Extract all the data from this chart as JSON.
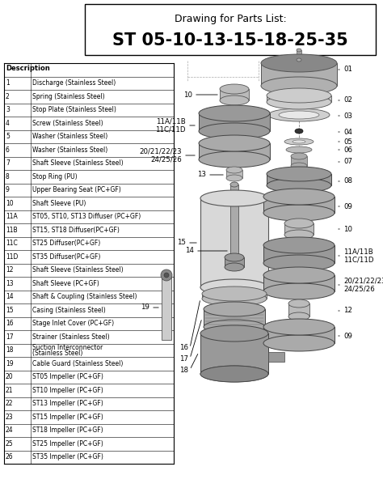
{
  "title_line1": "Drawing for Parts List:",
  "title_line2": "ST 05-10-13-15-18-25-35",
  "bg_color": "#ffffff",
  "table_rows": [
    [
      "1",
      "Discharge (Stainless Steel)"
    ],
    [
      "2",
      "Spring (Stainless Steel)"
    ],
    [
      "3",
      "Stop Plate (Stainless Steel)"
    ],
    [
      "4",
      "Screw (Stainless Steel)"
    ],
    [
      "5",
      "Washer (Stainless Steel)"
    ],
    [
      "6",
      "Washer (Stainless Steel)"
    ],
    [
      "7",
      "Shaft Sleeve (Stainless Steel)"
    ],
    [
      "8",
      "Stop Ring (PU)"
    ],
    [
      "9",
      "Upper Bearing Seat (PC+GF)"
    ],
    [
      "10",
      "Shaft Sleeve (PU)"
    ],
    [
      "11A",
      "ST05, ST10, ST13 Diffuser (PC+GF)"
    ],
    [
      "11B",
      "ST15, ST18 Diffuser(PC+GF)"
    ],
    [
      "11C",
      "ST25 Diffuser(PC+GF)"
    ],
    [
      "11D",
      "ST35 Diffuser(PC+GF)"
    ],
    [
      "12",
      "Shaft Sleeve (Stainless Steel)"
    ],
    [
      "13",
      "Shaft Sleeve (PC+GF)"
    ],
    [
      "14",
      "Shaft & Coupling (Stainless Steel)"
    ],
    [
      "15",
      "Casing (Stainless Steel)"
    ],
    [
      "16",
      "Stage Inlet Cover (PC+GF)"
    ],
    [
      "17",
      "Strainer (Stainless Steel)"
    ],
    [
      "18",
      "Suction Interconnector\n(Stainless Steel)"
    ],
    [
      "19",
      "Cable Guard (Stainless Steel)"
    ],
    [
      "20",
      "ST05 Impeller (PC+GF)"
    ],
    [
      "21",
      "ST10 Impeller (PC+GF)"
    ],
    [
      "22",
      "ST13 Impeller (PC+GF)"
    ],
    [
      "23",
      "ST15 Impeller (PC+GF)"
    ],
    [
      "24",
      "ST18 Impeller (PC+GF)"
    ],
    [
      "25",
      "ST25 Impeller (PC+GF)"
    ],
    [
      "26",
      "ST35 Impeller (PC+GF)"
    ]
  ]
}
